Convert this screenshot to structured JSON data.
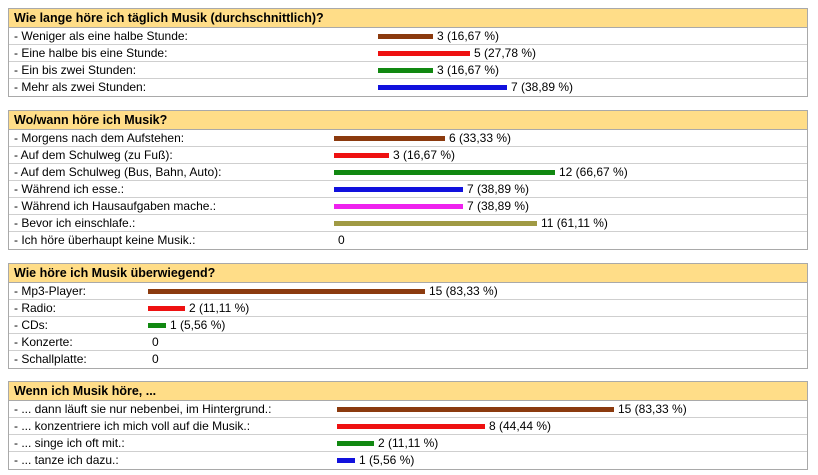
{
  "chart_data": [
    {
      "type": "bar",
      "title": "Wie lange höre ich täglich Musik (durchschnittlich)?",
      "rows": [
        {
          "label": "- Weniger als eine halbe Stunde:",
          "value": 3,
          "display": "3 (16,67 %)",
          "color": "#8b3a0e"
        },
        {
          "label": "- Eine halbe bis eine Stunde:",
          "value": 5,
          "display": "5 (27,78 %)",
          "color": "#ee1111"
        },
        {
          "label": "- Ein bis zwei Stunden:",
          "value": 3,
          "display": "3 (16,67 %)",
          "color": "#118811"
        },
        {
          "label": "- Mehr als zwei Stunden:",
          "value": 7,
          "display": "7 (38,89 %)",
          "color": "#1111dd"
        }
      ]
    },
    {
      "type": "bar",
      "title": "Wo/wann höre ich Musik?",
      "rows": [
        {
          "label": "- Morgens nach dem Aufstehen:",
          "value": 6,
          "display": "6 (33,33 %)",
          "color": "#8b3a0e"
        },
        {
          "label": "- Auf dem Schulweg (zu Fuß):",
          "value": 3,
          "display": "3 (16,67 %)",
          "color": "#ee1111"
        },
        {
          "label": "- Auf dem Schulweg (Bus, Bahn, Auto):",
          "value": 12,
          "display": "12 (66,67 %)",
          "color": "#118811"
        },
        {
          "label": "- Während ich esse.:",
          "value": 7,
          "display": "7 (38,89 %)",
          "color": "#1111dd"
        },
        {
          "label": "- Während ich Hausaufgaben mache.:",
          "value": 7,
          "display": "7 (38,89 %)",
          "color": "#ee22ee"
        },
        {
          "label": "- Bevor ich einschlafe.:",
          "value": 11,
          "display": "11 (61,11 %)",
          "color": "#a09a44"
        },
        {
          "label": "- Ich höre überhaupt keine Musik.:",
          "value": 0,
          "display": "0",
          "color": "#8b3a0e"
        }
      ]
    },
    {
      "type": "bar",
      "title": "Wie höre ich Musik überwiegend?",
      "rows": [
        {
          "label": "- Mp3-Player:",
          "value": 15,
          "display": "15 (83,33 %)",
          "color": "#8b3a0e"
        },
        {
          "label": "- Radio:",
          "value": 2,
          "display": "2 (11,11 %)",
          "color": "#ee1111"
        },
        {
          "label": "- CDs:",
          "value": 1,
          "display": "1 (5,56 %)",
          "color": "#118811"
        },
        {
          "label": "- Konzerte:",
          "value": 0,
          "display": "0",
          "color": "#1111dd"
        },
        {
          "label": "- Schallplatte:",
          "value": 0,
          "display": "0",
          "color": "#ee22ee"
        }
      ]
    },
    {
      "type": "bar",
      "title": "Wenn ich Musik höre, ...",
      "rows": [
        {
          "label": "- ... dann läuft sie nur nebenbei, im Hintergrund.:",
          "value": 15,
          "display": "15 (83,33 %)",
          "color": "#8b3a0e"
        },
        {
          "label": "- ... konzentriere ich mich voll auf die Musik.:",
          "value": 8,
          "display": "8 (44,44 %)",
          "color": "#ee1111"
        },
        {
          "label": "- ... singe ich oft mit.:",
          "value": 2,
          "display": "2 (11,11 %)",
          "color": "#118811"
        },
        {
          "label": "- ... tanze ich dazu.:",
          "value": 1,
          "display": "1 (5,56 %)",
          "color": "#1111dd"
        }
      ]
    }
  ]
}
